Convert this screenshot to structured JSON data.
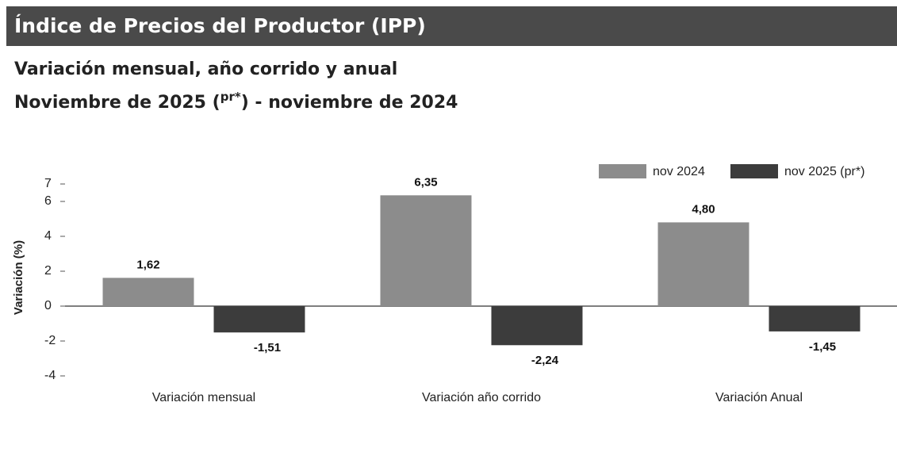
{
  "header": {
    "title": "Índice de Precios del Productor (IPP)"
  },
  "chart_data": {
    "type": "bar",
    "subtitle": "Variación mensual, año corrido y anual",
    "subtitle2_parts": [
      "Noviembre de 2025 (",
      "pr*",
      ") - noviembre de 2024"
    ],
    "y_label": "Variación (%)",
    "categories": [
      "Variación mensual",
      "Variación año corrido",
      "Variación Anual"
    ],
    "series": [
      {
        "name": "nov 2024",
        "color": "#8c8c8c",
        "values": [
          1.62,
          6.35,
          4.8
        ],
        "value_labels": [
          "1,62",
          "6,35",
          "4,80"
        ]
      },
      {
        "name": "nov 2025 (pr*)",
        "color": "#3c3c3c",
        "values": [
          -1.51,
          -2.24,
          -1.45
        ],
        "value_labels": [
          "-1,51",
          "-2,24",
          "-1,45"
        ]
      }
    ],
    "ylim": [
      -4,
      7
    ],
    "yticks": [
      -4,
      -2,
      0,
      2,
      4,
      6,
      7
    ],
    "legend": "top-right"
  }
}
